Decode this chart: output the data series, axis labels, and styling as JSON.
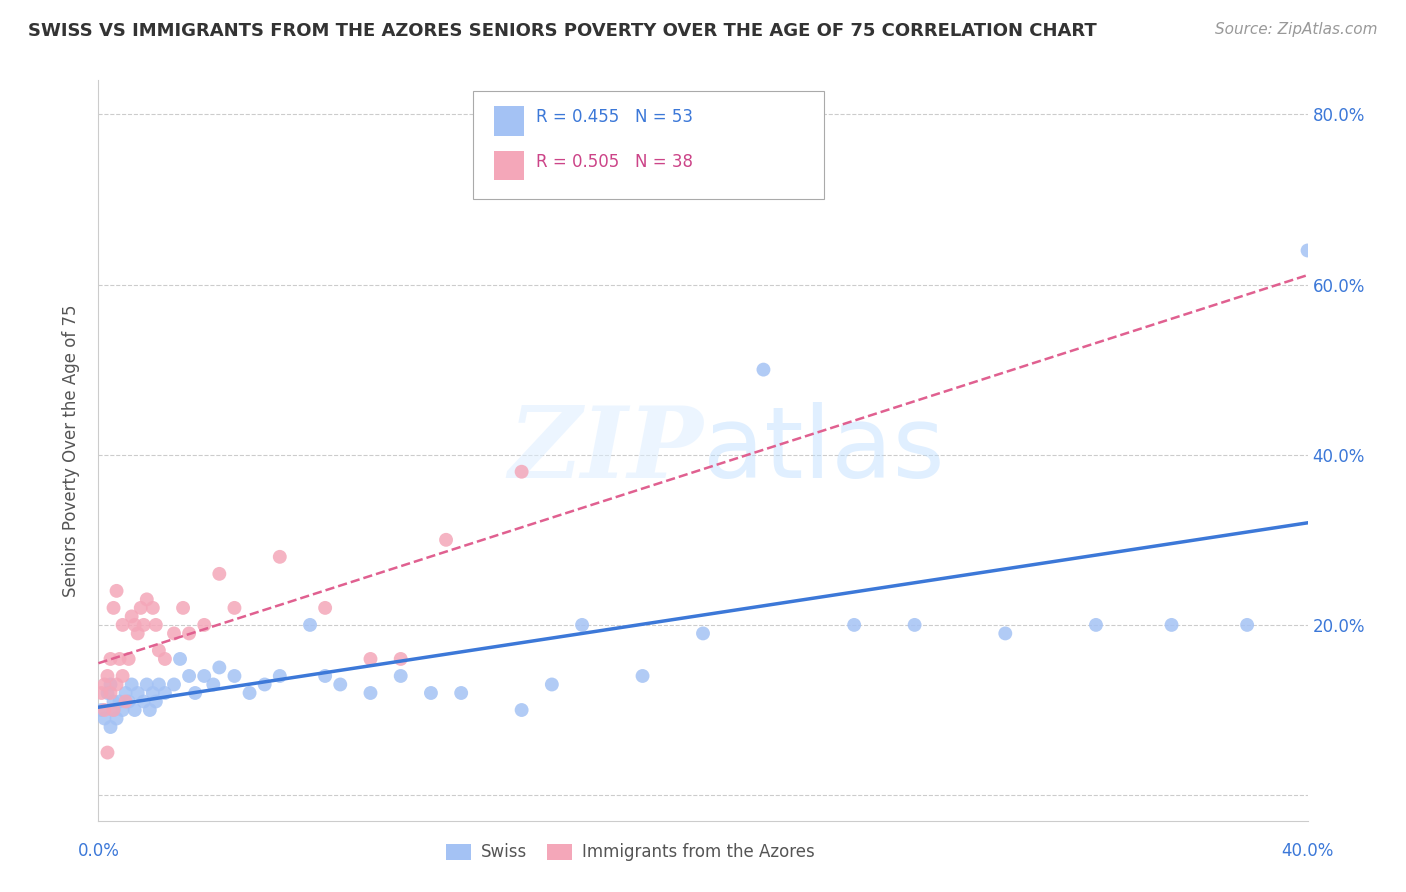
{
  "title": "SWISS VS IMMIGRANTS FROM THE AZORES SENIORS POVERTY OVER THE AGE OF 75 CORRELATION CHART",
  "source": "Source: ZipAtlas.com",
  "ylabel": "Seniors Poverty Over the Age of 75",
  "xlim": [
    0.0,
    0.4
  ],
  "ylim": [
    -0.03,
    0.84
  ],
  "yticks": [
    0.0,
    0.2,
    0.4,
    0.6,
    0.8
  ],
  "ytick_labels": [
    "",
    "20.0%",
    "40.0%",
    "60.0%",
    "80.0%"
  ],
  "swiss_color": "#a4c2f4",
  "azores_color": "#f4a7b9",
  "swiss_line_color": "#3c78d8",
  "azores_line_color": "#e06090",
  "swiss_x": [
    0.001,
    0.002,
    0.003,
    0.004,
    0.004,
    0.005,
    0.005,
    0.006,
    0.007,
    0.008,
    0.009,
    0.01,
    0.011,
    0.012,
    0.013,
    0.015,
    0.016,
    0.017,
    0.018,
    0.019,
    0.02,
    0.022,
    0.025,
    0.027,
    0.03,
    0.032,
    0.035,
    0.038,
    0.04,
    0.045,
    0.05,
    0.055,
    0.06,
    0.07,
    0.075,
    0.08,
    0.09,
    0.1,
    0.11,
    0.12,
    0.14,
    0.15,
    0.16,
    0.18,
    0.2,
    0.22,
    0.25,
    0.27,
    0.3,
    0.33,
    0.355,
    0.38,
    0.4
  ],
  "swiss_y": [
    0.1,
    0.09,
    0.12,
    0.08,
    0.13,
    0.1,
    0.11,
    0.09,
    0.11,
    0.1,
    0.12,
    0.11,
    0.13,
    0.1,
    0.12,
    0.11,
    0.13,
    0.1,
    0.12,
    0.11,
    0.13,
    0.12,
    0.13,
    0.16,
    0.14,
    0.12,
    0.14,
    0.13,
    0.15,
    0.14,
    0.12,
    0.13,
    0.14,
    0.2,
    0.14,
    0.13,
    0.12,
    0.14,
    0.12,
    0.12,
    0.1,
    0.13,
    0.2,
    0.14,
    0.19,
    0.5,
    0.2,
    0.2,
    0.19,
    0.2,
    0.2,
    0.2,
    0.64
  ],
  "azores_x": [
    0.001,
    0.002,
    0.002,
    0.003,
    0.003,
    0.004,
    0.004,
    0.005,
    0.005,
    0.006,
    0.006,
    0.007,
    0.008,
    0.008,
    0.009,
    0.01,
    0.011,
    0.012,
    0.013,
    0.014,
    0.015,
    0.016,
    0.018,
    0.019,
    0.02,
    0.022,
    0.025,
    0.028,
    0.03,
    0.035,
    0.04,
    0.045,
    0.06,
    0.075,
    0.09,
    0.1,
    0.115,
    0.14
  ],
  "azores_y": [
    0.12,
    0.1,
    0.13,
    0.14,
    0.05,
    0.16,
    0.12,
    0.22,
    0.1,
    0.24,
    0.13,
    0.16,
    0.14,
    0.2,
    0.11,
    0.16,
    0.21,
    0.2,
    0.19,
    0.22,
    0.2,
    0.23,
    0.22,
    0.2,
    0.17,
    0.16,
    0.19,
    0.22,
    0.19,
    0.2,
    0.26,
    0.22,
    0.28,
    0.22,
    0.16,
    0.16,
    0.3,
    0.38
  ],
  "watermark_zip": "ZIP",
  "watermark_atlas": "atlas",
  "background_color": "#ffffff",
  "grid_color": "#cccccc",
  "title_fontsize": 13,
  "source_fontsize": 11,
  "tick_color": "#3c78d8",
  "ylabel_color": "#555555"
}
